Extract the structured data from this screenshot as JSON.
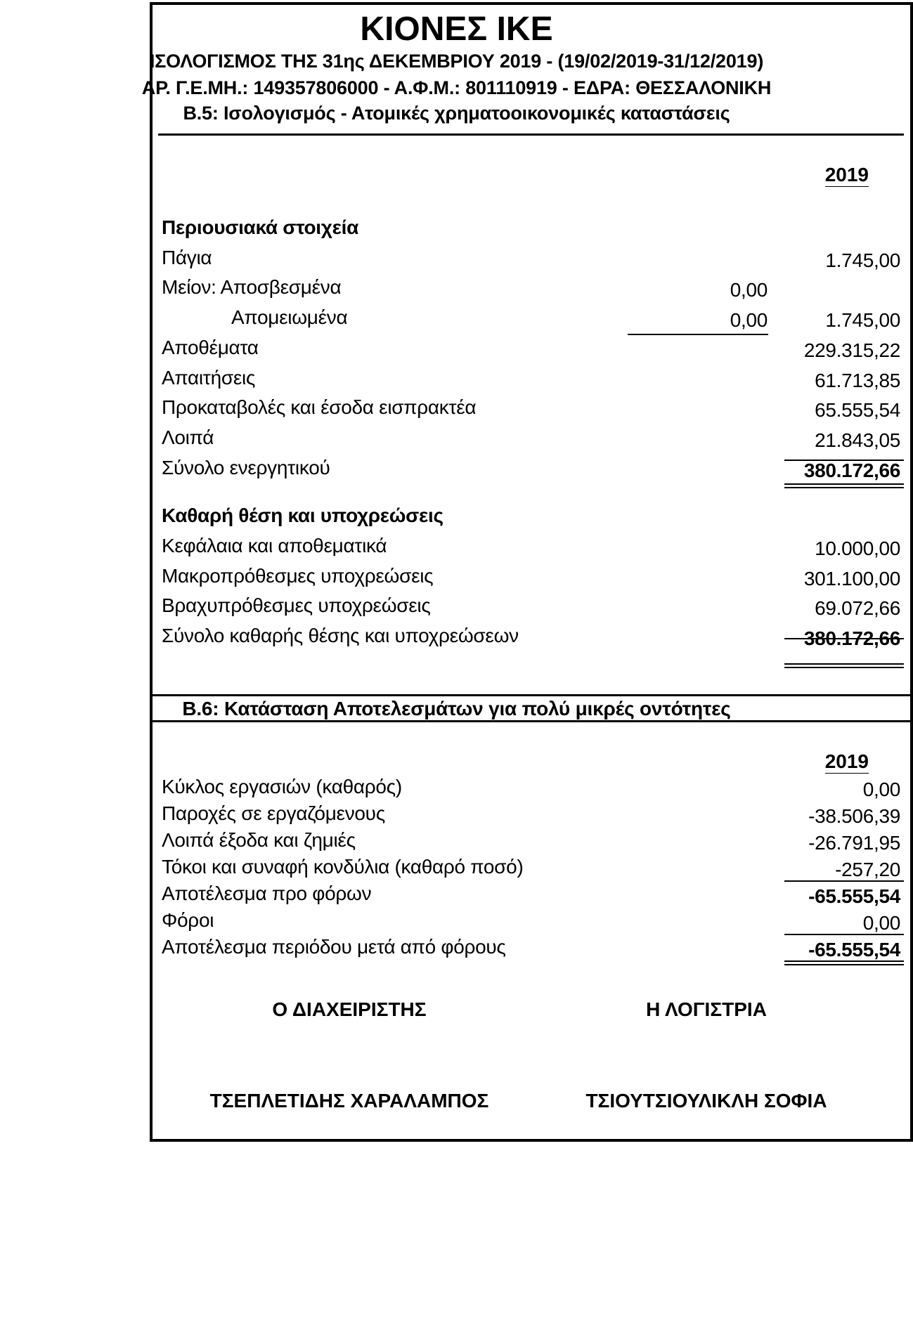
{
  "header": {
    "company": "ΚΙΟΝΕΣ ΙΚΕ",
    "line1": "ΙΣΟΛΟΓΙΣΜΟΣ ΤΗΣ 31ης ΔΕΚΕΜΒΡΙΟΥ 2019 - (19/02/2019-31/12/2019)",
    "line2": "ΑΡ. Γ.Ε.ΜΗ.: 149357806000 - Α.Φ.Μ.: 801110919 - ΕΔΡΑ: ΘΕΣΣΑΛΟΝΙΚΗ",
    "line3": "Β.5: Ισολογισμός - Ατομικές χρηματοοικονομικές καταστάσεις"
  },
  "balance": {
    "year": "2019",
    "rows": [
      {
        "label": "Περιουσιακά στοιχεία",
        "bold": true
      },
      {
        "label": "Πάγια",
        "value": "1.745,00"
      },
      {
        "label": "Μείον: Αποσβεσμένα",
        "mid": "0,00"
      },
      {
        "label": "Απομειωμένα",
        "indent": true,
        "mid": "0,00",
        "value": "1.745,00"
      },
      {
        "label": "Αποθέματα",
        "value": "229.315,22"
      },
      {
        "label": "Απαιτήσεις",
        "value": "61.713,85"
      },
      {
        "label": "Προκαταβολές και έσοδα εισπρακτέα",
        "value": "65.555,54"
      },
      {
        "label": "Λοιπά",
        "value": "21.843,05"
      },
      {
        "label": "Σύνολο ενεργητικού",
        "value": "380.172,66",
        "bold_value": true
      },
      {
        "label": "Καθαρή θέση και υποχρεώσεις",
        "bold": true
      },
      {
        "label": "Κεφάλαια και αποθεματικά",
        "value": "10.000,00"
      },
      {
        "label": "Μακροπρόθεσμες υποχρεώσεις",
        "value": "301.100,00"
      },
      {
        "label": "Βραχυπρόθεσμες υποχρεώσεις",
        "value": "69.072,66"
      },
      {
        "label": "Σύνολο καθαρής θέσης και υποχρεώσεων",
        "value": "380.172,66",
        "bold_value": true
      }
    ]
  },
  "income": {
    "title": "Β.6: Κατάσταση Αποτελεσμάτων για πολύ μικρές οντότητες",
    "year": "2019",
    "rows": [
      {
        "label": "Κύκλος εργασιών (καθαρός)",
        "value": "0,00"
      },
      {
        "label": "Παροχές σε εργαζόμενους",
        "value": "-38.506,39"
      },
      {
        "label": "Λοιπά έξοδα και ζημιές",
        "value": "-26.791,95"
      },
      {
        "label": "Τόκοι και συναφή κονδύλια (καθαρό ποσό)",
        "value": "-257,20"
      },
      {
        "label": "Αποτέλεσμα προ φόρων",
        "value": "-65.555,54",
        "bold_value": true
      },
      {
        "label": "Φόροι",
        "value": "0,00"
      },
      {
        "label": "Αποτέλεσμα περιόδου μετά από φόρους",
        "value": "-65.555,54",
        "bold_value": true
      }
    ]
  },
  "signatures": {
    "left_title": "Ο ΔΙΑΧΕΙΡΙΣΤΗΣ",
    "right_title": "Η ΛΟΓΙΣΤΡΙΑ",
    "left_name": "ΤΣΕΠΛΕΤΙΔΗΣ ΧΑΡΑΛΑΜΠΟΣ",
    "right_name": "ΤΣΙΟΥΤΣΙΟΥΛΙΚΛΗ ΣΟΦΙΑ"
  }
}
